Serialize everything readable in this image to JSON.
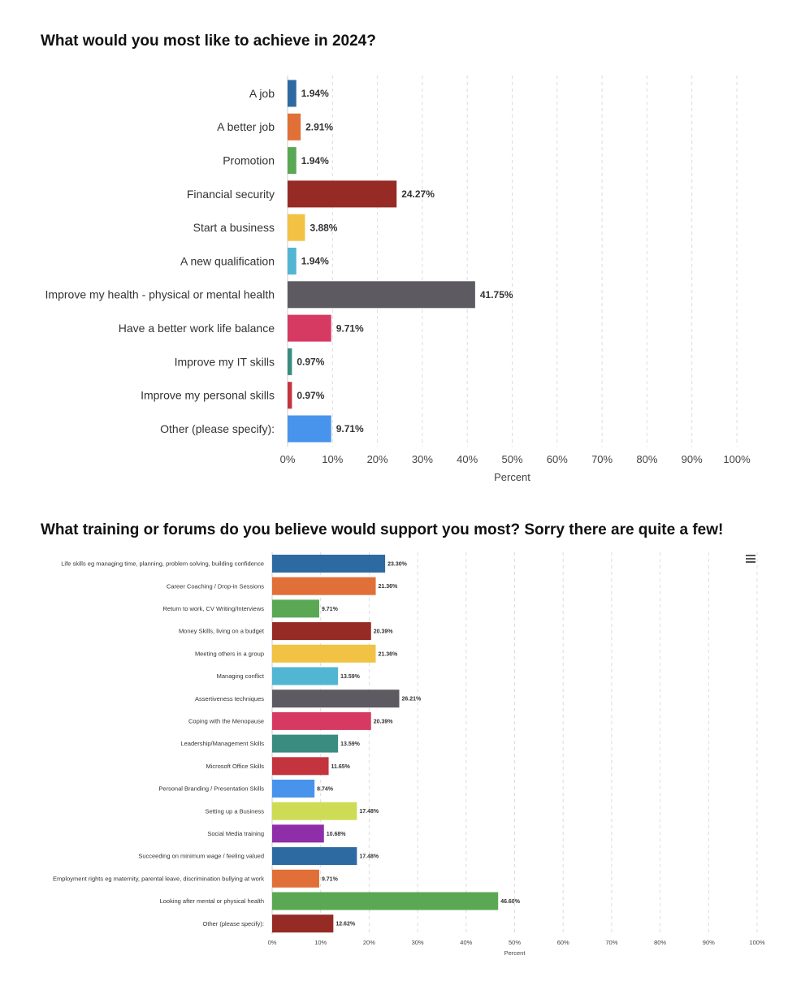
{
  "chart_data": [
    {
      "type": "bar",
      "orientation": "horizontal",
      "title": "What would you most like to achieve in 2024?",
      "xlabel": "Percent",
      "xlim": [
        0,
        100
      ],
      "x_ticks": [
        "0%",
        "10%",
        "20%",
        "30%",
        "40%",
        "50%",
        "60%",
        "70%",
        "80%",
        "90%",
        "100%"
      ],
      "grid": "vertical dashed",
      "categories": [
        "A job",
        "A better job",
        "Promotion",
        "Financial security",
        "Start a business",
        "A new qualification",
        "Improve my health - physical or mental health",
        "Have a better work life balance",
        "Improve my IT skills",
        "Improve my personal skills",
        "Other (please specify):"
      ],
      "values": [
        1.94,
        2.91,
        1.94,
        24.27,
        3.88,
        1.94,
        41.75,
        9.71,
        0.97,
        0.97,
        9.71
      ],
      "value_labels": [
        "1.94%",
        "2.91%",
        "1.94%",
        "24.27%",
        "3.88%",
        "1.94%",
        "41.75%",
        "9.71%",
        "0.97%",
        "0.97%",
        "9.71%"
      ],
      "colors": [
        "#2e6aa2",
        "#e07038",
        "#5aa853",
        "#962a25",
        "#f2c244",
        "#52b6d2",
        "#5e5a61",
        "#d63a62",
        "#3a8c80",
        "#c4343e",
        "#4894ec"
      ]
    },
    {
      "type": "bar",
      "orientation": "horizontal",
      "title": "What training or forums do you believe would support you most? Sorry there are quite a few!",
      "xlabel": "Percent",
      "xlim": [
        0,
        100
      ],
      "x_ticks": [
        "0%",
        "10%",
        "20%",
        "30%",
        "40%",
        "50%",
        "60%",
        "70%",
        "80%",
        "90%",
        "100%"
      ],
      "grid": "vertical dashed",
      "categories": [
        "Life skills eg managing time, planning, problem solving, building confidence",
        "Career Coaching / Drop-in Sessions",
        "Return to work, CV Writing/Interviews",
        "Money Skills, living on a budget",
        "Meeting others in a group",
        "Managing conflict",
        "Assertiveness techniques",
        "Coping with the Menopause",
        "Leadership/Management Skills",
        "Microsoft Office Skills",
        "Personal Branding / Presentation Skills",
        "Setting up a Business",
        "Social Media training",
        "Succeeding on minimum wage / feeling valued",
        "Employment rights eg maternity, parental leave, discrimination bullying at work",
        "Looking after mental or physical health",
        "Other (please specify):"
      ],
      "values": [
        23.3,
        21.36,
        9.71,
        20.39,
        21.36,
        13.59,
        26.21,
        20.39,
        13.59,
        11.65,
        8.74,
        17.48,
        10.68,
        17.48,
        9.71,
        46.6,
        12.62
      ],
      "value_labels": [
        "23.30%",
        "21.36%",
        "9.71%",
        "20.39%",
        "21.36%",
        "13.59%",
        "26.21%",
        "20.39%",
        "13.59%",
        "11.65%",
        "8.74%",
        "17.48%",
        "10.68%",
        "17.48%",
        "9.71%",
        "46.60%",
        "12.62%"
      ],
      "colors": [
        "#2e6aa2",
        "#e07038",
        "#5aa853",
        "#962a25",
        "#f2c244",
        "#52b6d2",
        "#5e5a61",
        "#d63a62",
        "#3a8c80",
        "#c4343e",
        "#4894ec",
        "#cedc55",
        "#8e2ea8",
        "#2e6aa2",
        "#e07038",
        "#5aa853",
        "#962a25"
      ]
    }
  ],
  "menu_icon": "hamburger-menu-icon"
}
